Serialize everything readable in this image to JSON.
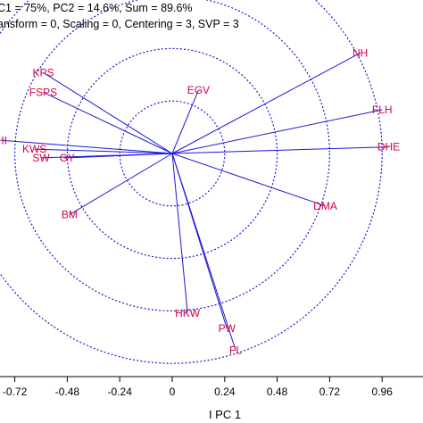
{
  "header": {
    "line1": "C1 = 75%, PC2 = 14.6%, Sum = 89.6%",
    "line2": "ansform = 0, Scaling = 0, Centering = 3, SVP = 3"
  },
  "chart_data": {
    "type": "biplot",
    "xlabel": "I PC 1",
    "ylabel": "",
    "xlim": [
      -0.8,
      1.1
    ],
    "ylim": [
      -0.8,
      0.8
    ],
    "x_ticks": [
      "-0.72",
      "-0.48",
      "-0.24",
      "0",
      "0.24",
      "0.48",
      "0.72",
      "0.96"
    ],
    "x_tick_values": [
      -0.72,
      -0.48,
      -0.24,
      0,
      0.24,
      0.48,
      0.72,
      0.96
    ],
    "circle_radii": [
      0.24,
      0.48,
      0.72,
      0.96
    ],
    "vectors": [
      {
        "label": "NH",
        "x": 0.86,
        "y": 0.46
      },
      {
        "label": "FLH",
        "x": 0.96,
        "y": 0.2
      },
      {
        "label": "DHE",
        "x": 0.99,
        "y": 0.03
      },
      {
        "label": "DMA",
        "x": 0.7,
        "y": -0.24
      },
      {
        "label": "EGV",
        "x": 0.12,
        "y": 0.29
      },
      {
        "label": "KPS",
        "x": -0.59,
        "y": 0.37
      },
      {
        "label": "FSPS",
        "x": -0.59,
        "y": 0.28
      },
      {
        "label": "HI",
        "x": -0.78,
        "y": 0.06
      },
      {
        "label": "KWS",
        "x": -0.63,
        "y": 0.02
      },
      {
        "label": "SW",
        "x": -0.6,
        "y": -0.02
      },
      {
        "label": "GY",
        "x": -0.48,
        "y": -0.02
      },
      {
        "label": "BM",
        "x": -0.47,
        "y": -0.28
      },
      {
        "label": "HKW",
        "x": 0.07,
        "y": -0.73
      },
      {
        "label": "PW",
        "x": 0.25,
        "y": -0.8
      },
      {
        "label": "FL",
        "x": 0.29,
        "y": -0.9
      }
    ],
    "colors": {
      "vector": "#1a1ad6",
      "label": "#d6003f",
      "circle": "#1a1ad6"
    }
  }
}
